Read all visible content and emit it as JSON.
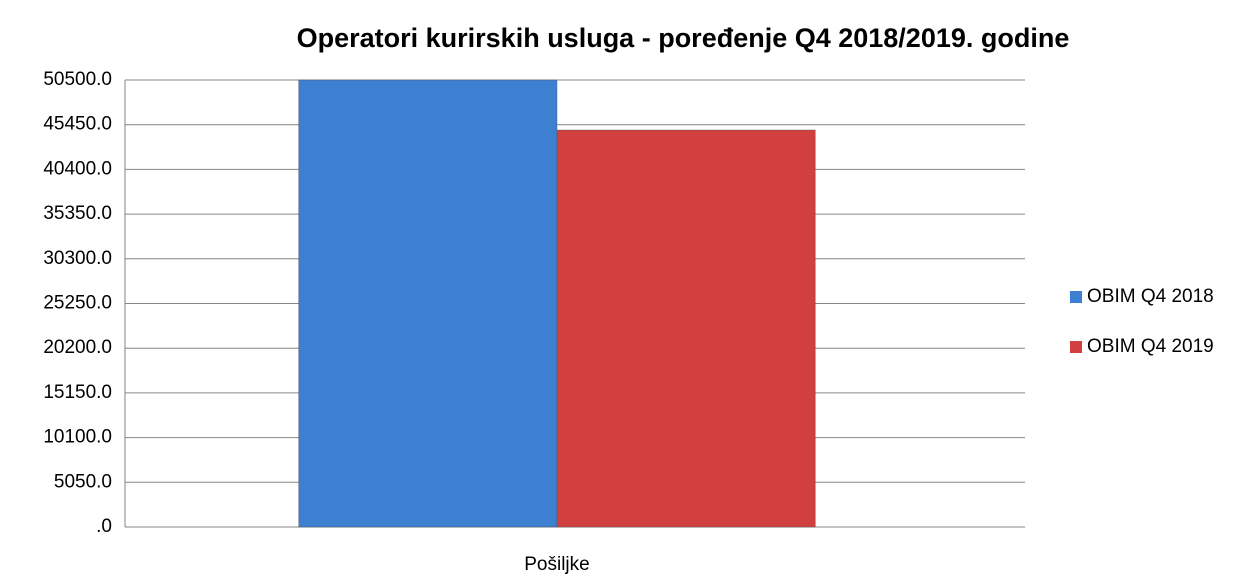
{
  "chart_data": {
    "type": "bar",
    "title": "Operatori kurirskih usluga - poređenje Q4  2018/2019. godine",
    "categories": [
      "Pošiljke"
    ],
    "series": [
      {
        "name": "OBIM Q4  2018",
        "color": "#3d7fd0",
        "values": [
          50500
        ]
      },
      {
        "name": "OBIM Q4  2019",
        "color": "#d23f3f",
        "values": [
          44850
        ]
      }
    ],
    "ylim": [
      0,
      50500
    ],
    "yticks": [
      {
        "value": 0,
        "label": ".0"
      },
      {
        "value": 5050,
        "label": "5050.0"
      },
      {
        "value": 10100,
        "label": "10100.0"
      },
      {
        "value": 15150,
        "label": "15150.0"
      },
      {
        "value": 20200,
        "label": "20200.0"
      },
      {
        "value": 25250,
        "label": "25250.0"
      },
      {
        "value": 30300,
        "label": "30300.0"
      },
      {
        "value": 35350,
        "label": "35350.0"
      },
      {
        "value": 40400,
        "label": "40400.0"
      },
      {
        "value": 45450,
        "label": "45450.0"
      },
      {
        "value": 50500,
        "label": "50500.0"
      }
    ],
    "grid": true,
    "legend": "right"
  }
}
